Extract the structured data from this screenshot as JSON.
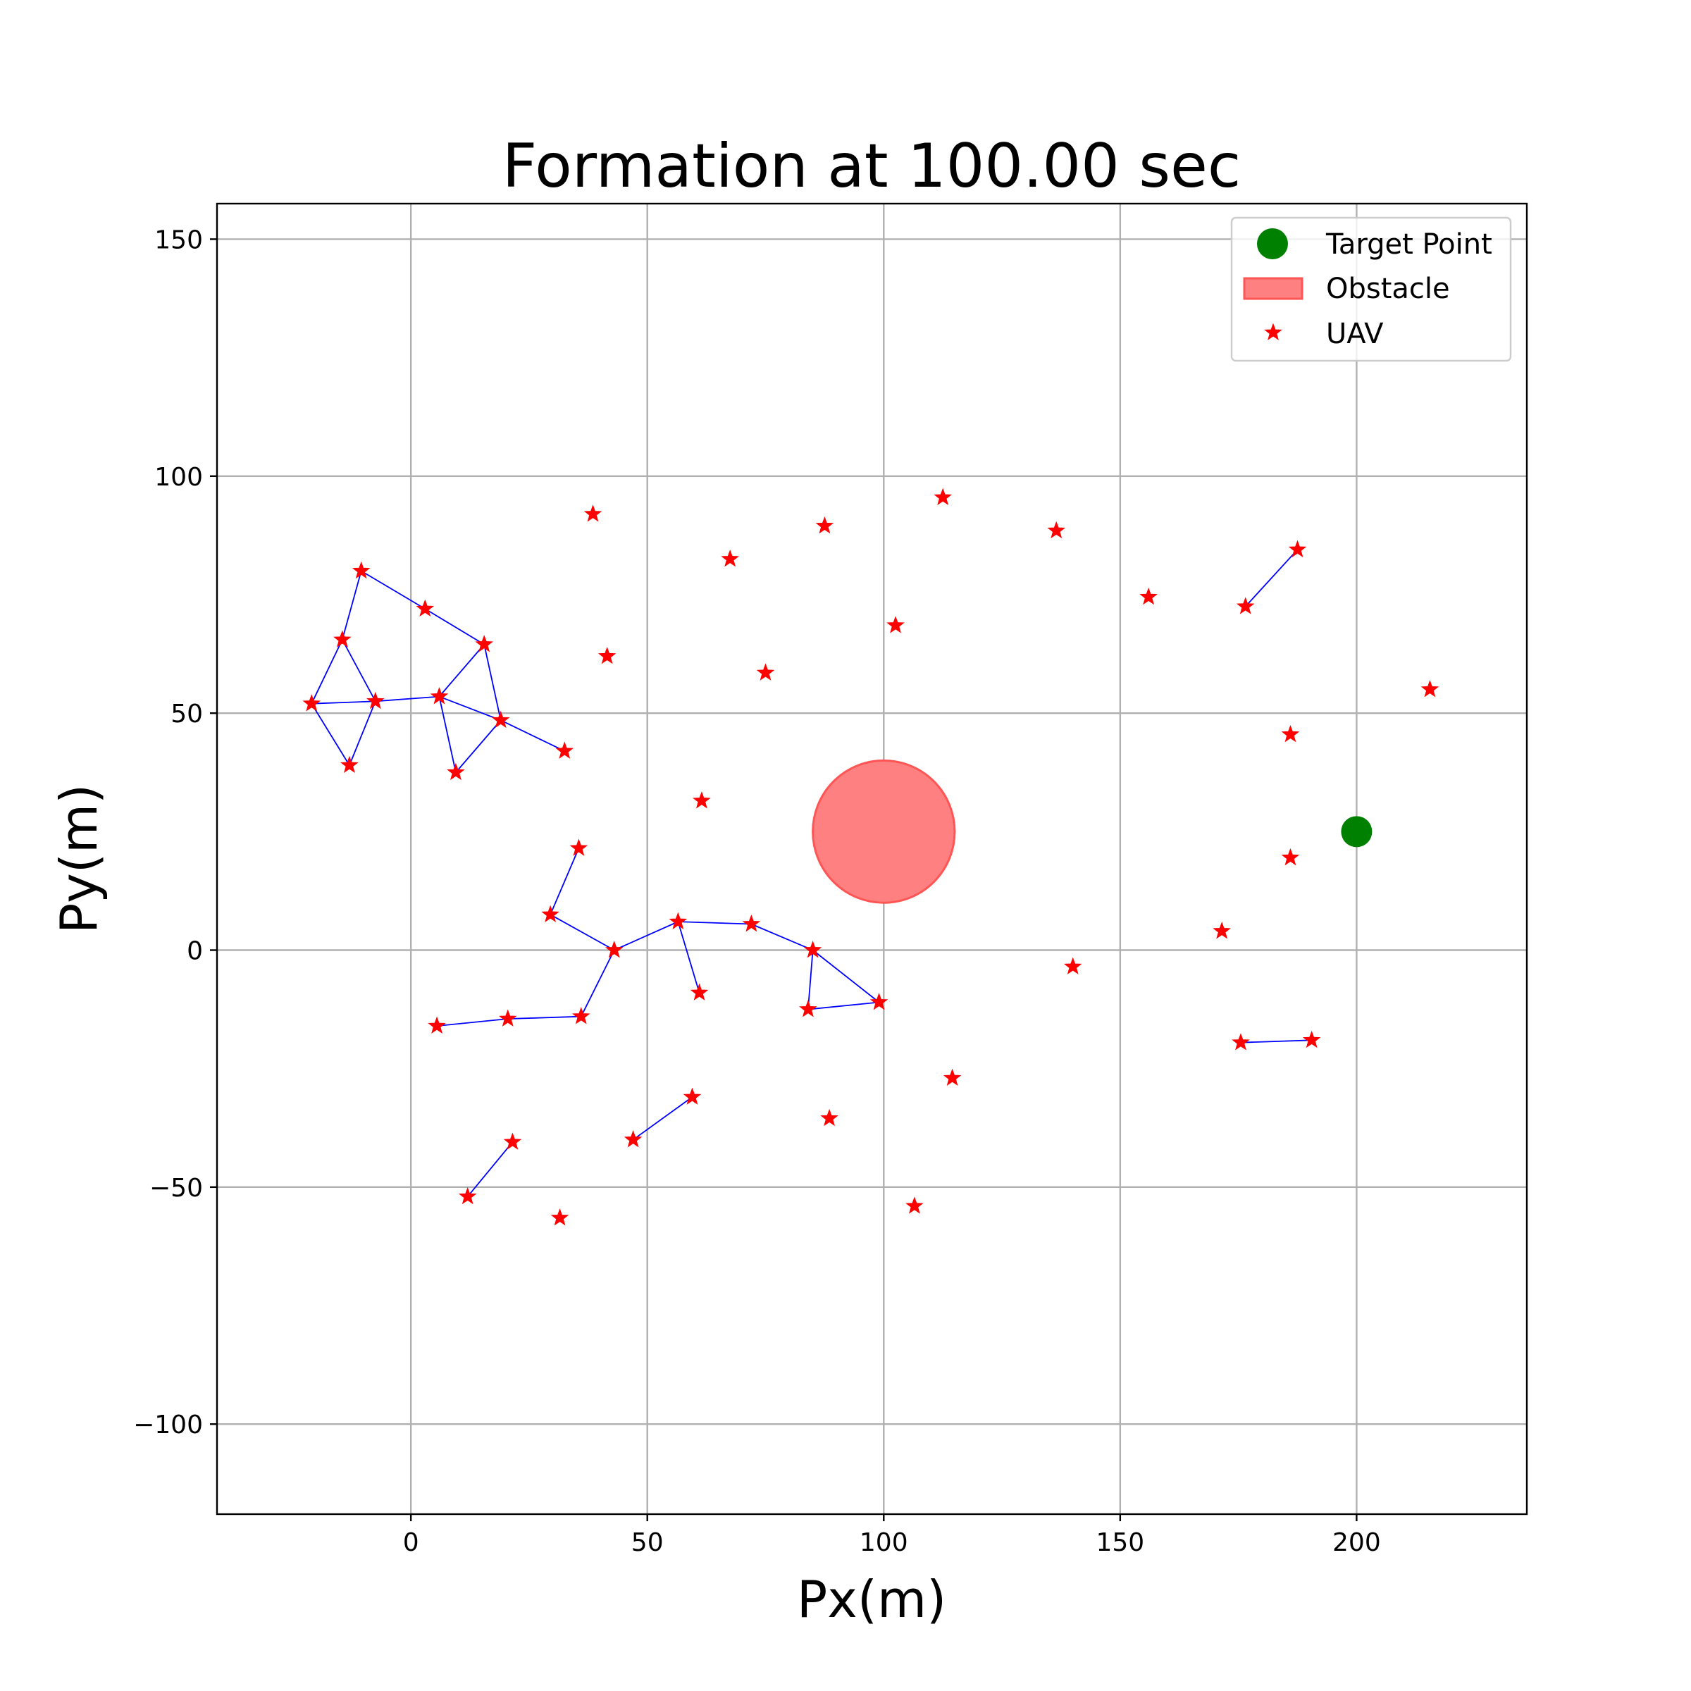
{
  "chart_data": {
    "type": "scatter",
    "title": "Formation at 100.00 sec",
    "xlabel": "Px(m)",
    "ylabel": "Py(m)",
    "xlim": [
      -41,
      236
    ],
    "ylim": [
      -119,
      157.5
    ],
    "xticks": [
      0,
      50,
      100,
      150,
      200
    ],
    "yticks": [
      -100,
      -50,
      0,
      50,
      100,
      150
    ],
    "x_tick_labels": [
      "0",
      "50",
      "100",
      "150",
      "200"
    ],
    "y_tick_labels": [
      "−100",
      "−50",
      "0",
      "50",
      "100",
      "150"
    ],
    "grid": true,
    "legend_position": "top-right",
    "legend": [
      "Target Point",
      "Obstacle",
      "UAV"
    ],
    "target_point": {
      "x": 200,
      "y": 25
    },
    "obstacle": {
      "x": 100,
      "y": 25,
      "radius": 15
    },
    "uav": [
      {
        "x": -10.5,
        "y": 80
      },
      {
        "x": 3,
        "y": 72
      },
      {
        "x": 15.5,
        "y": 64.5
      },
      {
        "x": -14.5,
        "y": 65.5
      },
      {
        "x": -21,
        "y": 52
      },
      {
        "x": -7.5,
        "y": 52.5
      },
      {
        "x": 6,
        "y": 53.5
      },
      {
        "x": 19,
        "y": 48.5
      },
      {
        "x": -13,
        "y": 39
      },
      {
        "x": 9.5,
        "y": 37.5
      },
      {
        "x": 32.5,
        "y": 42
      },
      {
        "x": 38.5,
        "y": 92
      },
      {
        "x": 41.5,
        "y": 62
      },
      {
        "x": 67.5,
        "y": 82.5
      },
      {
        "x": 75,
        "y": 58.5
      },
      {
        "x": 87.5,
        "y": 89.5
      },
      {
        "x": 102.5,
        "y": 68.5
      },
      {
        "x": 112.5,
        "y": 95.5
      },
      {
        "x": 136.5,
        "y": 88.5
      },
      {
        "x": 156,
        "y": 74.5
      },
      {
        "x": 176.5,
        "y": 72.5
      },
      {
        "x": 187.5,
        "y": 84.5
      },
      {
        "x": 215.5,
        "y": 55
      },
      {
        "x": 186,
        "y": 45.5
      },
      {
        "x": 61.5,
        "y": 31.5
      },
      {
        "x": 35.5,
        "y": 21.5
      },
      {
        "x": 29.5,
        "y": 7.5
      },
      {
        "x": 43,
        "y": 0
      },
      {
        "x": 56.5,
        "y": 6
      },
      {
        "x": 72,
        "y": 5.5
      },
      {
        "x": 85,
        "y": 0
      },
      {
        "x": 61,
        "y": -9
      },
      {
        "x": 84,
        "y": -12.5
      },
      {
        "x": 99,
        "y": -11
      },
      {
        "x": 140,
        "y": -3.5
      },
      {
        "x": 171.5,
        "y": 4
      },
      {
        "x": 186,
        "y": 19.5
      },
      {
        "x": 5.5,
        "y": -16
      },
      {
        "x": 20.5,
        "y": -14.5
      },
      {
        "x": 36,
        "y": -14
      },
      {
        "x": 175.5,
        "y": -19.5
      },
      {
        "x": 190.5,
        "y": -19
      },
      {
        "x": 114.5,
        "y": -27
      },
      {
        "x": 59.5,
        "y": -31
      },
      {
        "x": 47,
        "y": -40
      },
      {
        "x": 88.5,
        "y": -35.5
      },
      {
        "x": 21.5,
        "y": -40.5
      },
      {
        "x": 12,
        "y": -52
      },
      {
        "x": 31.5,
        "y": -56.5
      },
      {
        "x": 106.5,
        "y": -54
      }
    ],
    "links": [
      [
        0,
        1
      ],
      [
        1,
        2
      ],
      [
        0,
        3
      ],
      [
        3,
        4
      ],
      [
        3,
        5
      ],
      [
        4,
        5
      ],
      [
        4,
        8
      ],
      [
        8,
        5
      ],
      [
        5,
        6
      ],
      [
        6,
        2
      ],
      [
        6,
        9
      ],
      [
        6,
        7
      ],
      [
        9,
        7
      ],
      [
        2,
        7
      ],
      [
        7,
        10
      ],
      [
        25,
        26
      ],
      [
        26,
        27
      ],
      [
        27,
        28
      ],
      [
        28,
        29
      ],
      [
        28,
        31
      ],
      [
        29,
        30
      ],
      [
        30,
        32
      ],
      [
        30,
        33
      ],
      [
        32,
        33
      ],
      [
        27,
        39
      ],
      [
        39,
        38
      ],
      [
        38,
        37
      ],
      [
        20,
        21
      ],
      [
        40,
        41
      ],
      [
        42,
        42
      ],
      [
        43,
        44
      ],
      [
        46,
        47
      ]
    ]
  },
  "colors": {
    "uav": "#ff0000",
    "link": "#0000ff",
    "target": "#008000",
    "obstacle_fill": "#ff8080",
    "obstacle_edge": "#ff5555",
    "grid": "#b0b0b0"
  }
}
